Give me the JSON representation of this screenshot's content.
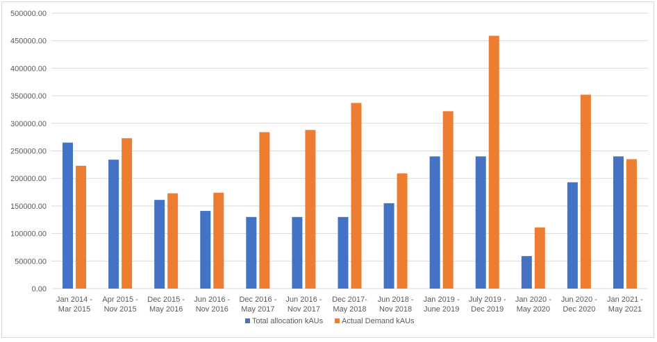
{
  "chart_data": {
    "type": "bar",
    "title": "",
    "xlabel": "",
    "ylabel": "",
    "ylim": [
      0,
      500000
    ],
    "y_ticks": [
      0,
      50000,
      100000,
      150000,
      200000,
      250000,
      300000,
      350000,
      400000,
      450000,
      500000
    ],
    "y_tick_labels": [
      "0.00",
      "50000.00",
      "100000.00",
      "150000.00",
      "200000.00",
      "250000.00",
      "300000.00",
      "350000.00",
      "400000.00",
      "450000.00",
      "500000.00"
    ],
    "grid": true,
    "legend_position": "bottom",
    "categories": [
      [
        "Jan 2014 -",
        "Mar  2015"
      ],
      [
        "Apr 2015 -",
        "Nov 2015"
      ],
      [
        "Dec 2015 -",
        "May 2016"
      ],
      [
        "Jun 2016 -",
        "Nov 2016"
      ],
      [
        "Dec 2016 -",
        "May 2017"
      ],
      [
        "Jun 2016 -",
        "Nov 2017"
      ],
      [
        "Dec 2017-",
        "May 2018"
      ],
      [
        "Jun 2018 -",
        "Nov 2018"
      ],
      [
        "Jan 2019 -",
        "June 2019"
      ],
      [
        "July 2019 -",
        "Dec 2019"
      ],
      [
        "Jan 2020 -",
        "May 2020"
      ],
      [
        "Jun 2020 -",
        "Dec 2020"
      ],
      [
        "Jan 2021 -",
        "May 2021"
      ]
    ],
    "series": [
      {
        "name": "Total allocation kAUs",
        "color": "#4472c4",
        "values": [
          265000,
          234000,
          161000,
          141000,
          130000,
          130000,
          130000,
          155000,
          240000,
          240000,
          59000,
          193000,
          240000
        ]
      },
      {
        "name": "Actual Demand kAUs",
        "color": "#ed7d31",
        "values": [
          223000,
          273000,
          173000,
          174000,
          284000,
          288000,
          337000,
          209000,
          322000,
          459000,
          111000,
          352000,
          235000
        ]
      }
    ]
  }
}
